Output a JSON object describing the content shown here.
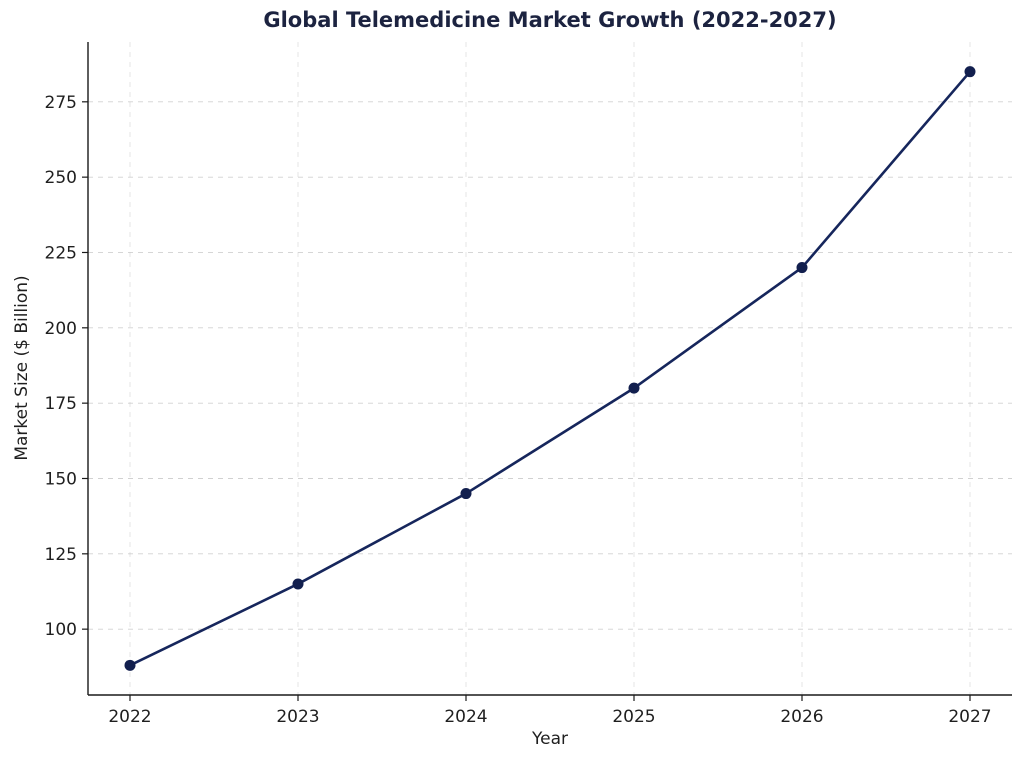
{
  "chart_data": {
    "type": "line",
    "title": "Global Telemedicine Market Growth (2022-2027)",
    "xlabel": "Year",
    "ylabel": "Market Size ($ Billion)",
    "x": [
      2022,
      2023,
      2024,
      2025,
      2026,
      2027
    ],
    "series": [
      {
        "name": "Market Size ($ Billion)",
        "values": [
          88,
          115,
          145,
          180,
          220,
          285
        ]
      }
    ],
    "xticks": [
      2022,
      2023,
      2024,
      2025,
      2026,
      2027
    ],
    "yticks": [
      100,
      125,
      150,
      175,
      200,
      225,
      250,
      275
    ],
    "xlim": [
      2021.75,
      2027.25
    ],
    "ylim": [
      78.15,
      294.85
    ],
    "grid": true,
    "grid_style": "dashed",
    "legend_position": "none",
    "line_color": "#16265c",
    "marker_color": "#121f4e",
    "grid_color": "#c9c9c9",
    "axis_color": "#1a1a1a",
    "tick_label_color": "#1f1f1f",
    "title_color": "#1c2340",
    "background_color": "#ffffff"
  }
}
